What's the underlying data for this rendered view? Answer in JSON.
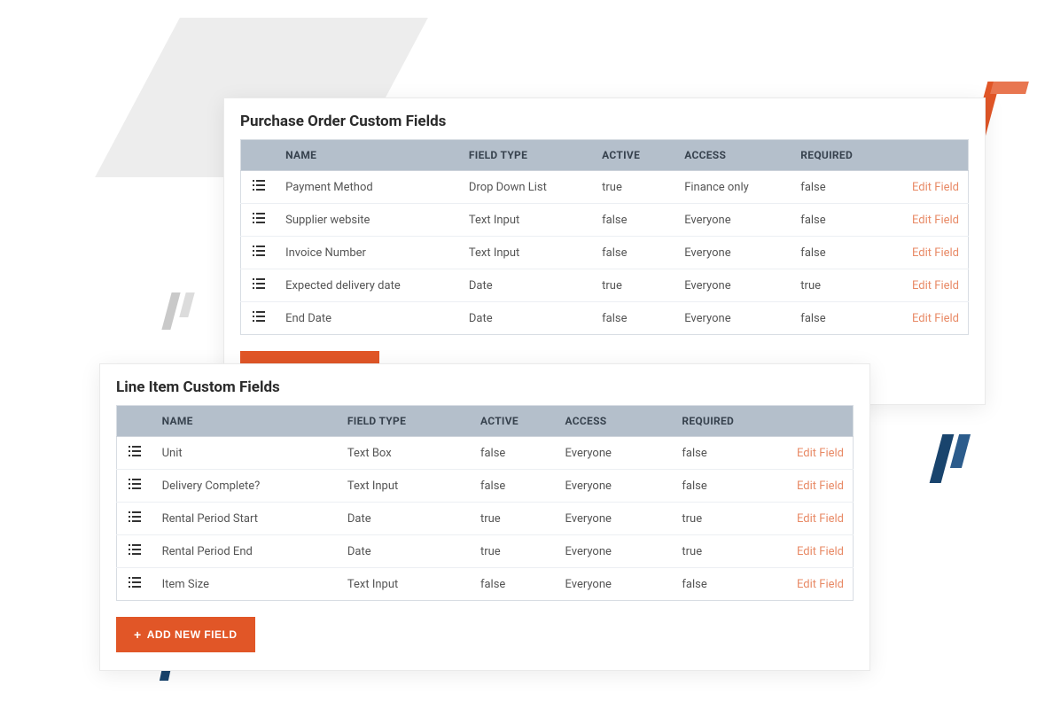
{
  "colors": {
    "header_bg": "#b4bfcb",
    "accent": "#e15627",
    "edit_link": "#e88a66",
    "card_bg": "#ffffff",
    "border": "#eceff3",
    "blue": "#19446d"
  },
  "labels": {
    "add_button": "ADD NEW FIELD",
    "edit": "Edit Field"
  },
  "columns": {
    "name": "NAME",
    "field_type": "FIELD TYPE",
    "active": "ACTIVE",
    "access": "ACCESS",
    "required": "REQUIRED"
  },
  "panels": {
    "purchase_order": {
      "title": "Purchase Order Custom Fields",
      "rows": [
        {
          "name": "Payment Method",
          "field_type": "Drop Down List",
          "active": "true",
          "access": "Finance only",
          "required": "false"
        },
        {
          "name": "Supplier website",
          "field_type": "Text Input",
          "active": "false",
          "access": "Everyone",
          "required": "false"
        },
        {
          "name": "Invoice Number",
          "field_type": "Text Input",
          "active": "false",
          "access": "Everyone",
          "required": "false"
        },
        {
          "name": "Expected delivery date",
          "field_type": "Date",
          "active": "true",
          "access": "Everyone",
          "required": "true"
        },
        {
          "name": "End Date",
          "field_type": "Date",
          "active": "false",
          "access": "Everyone",
          "required": "false"
        }
      ]
    },
    "line_item": {
      "title": "Line Item Custom Fields",
      "rows": [
        {
          "name": "Unit",
          "field_type": "Text Box",
          "active": "false",
          "access": "Everyone",
          "required": "false"
        },
        {
          "name": "Delivery Complete?",
          "field_type": "Text Input",
          "active": "false",
          "access": "Everyone",
          "required": "false"
        },
        {
          "name": "Rental Period Start",
          "field_type": "Date",
          "active": "true",
          "access": "Everyone",
          "required": "true"
        },
        {
          "name": "Rental Period End",
          "field_type": "Date",
          "active": "true",
          "access": "Everyone",
          "required": "true"
        },
        {
          "name": "Item Size",
          "field_type": "Text Input",
          "active": "false",
          "access": "Everyone",
          "required": "false"
        }
      ]
    }
  }
}
